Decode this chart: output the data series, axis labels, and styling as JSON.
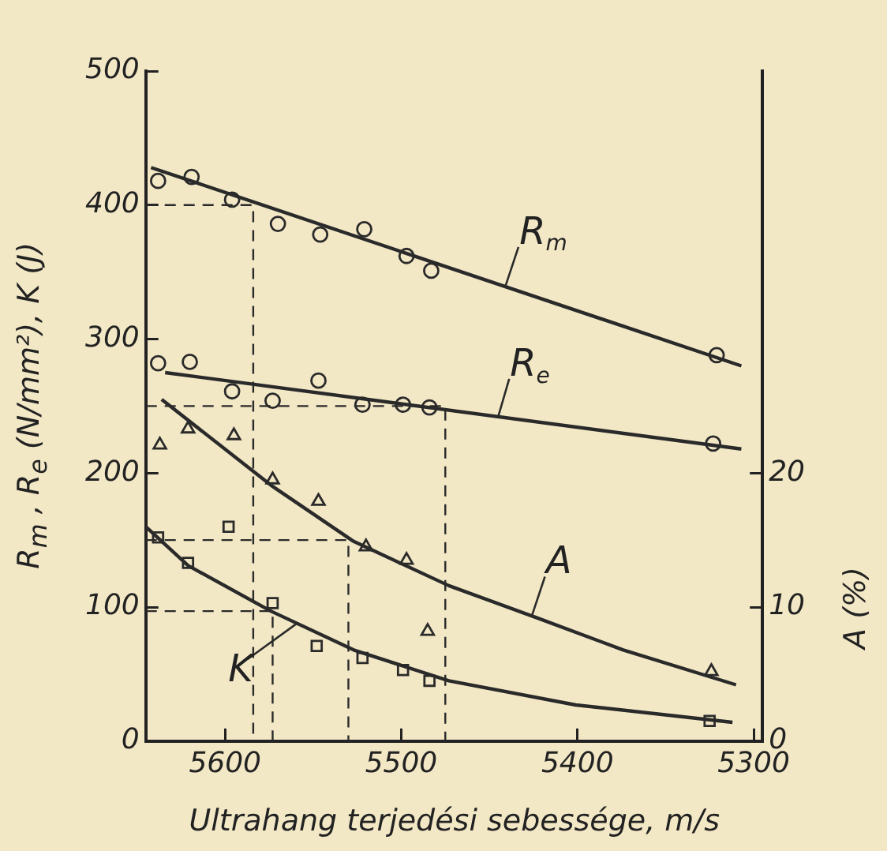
{
  "chart_data": {
    "type": "scatter",
    "xlabel": "Ultrahang terjedési sebessége, m/s",
    "ylabel": "R$_{m}$ , R$_{e}$ (N/mm²), K (J)",
    "y2label": "A (%)",
    "xlim": [
      5645,
      5295
    ],
    "xticks": [
      5600,
      5500,
      5400,
      5300
    ],
    "ylim": [
      0,
      500
    ],
    "yticks": [
      0,
      100,
      200,
      300,
      400,
      500
    ],
    "y2lim": [
      0,
      50
    ],
    "y2ticks": [
      0,
      10,
      20
    ],
    "grid": false,
    "legend": false,
    "series": [
      {
        "marker": "circle",
        "color": "#2a2a2a",
        "x": [
          5638,
          5619,
          5596,
          5570,
          5546,
          5521,
          5497,
          5483,
          5321
        ],
        "values": [
          418,
          421,
          404,
          386,
          378,
          382,
          362,
          351,
          288
        ]
      },
      {
        "type": "line",
        "marker": "none",
        "line_style": "solid",
        "color": "#2a2a2a",
        "x": [
          5642,
          5307
        ],
        "values": [
          428,
          280
        ]
      },
      {
        "marker": "circle",
        "color": "#2a2a2a",
        "x": [
          5638,
          5620,
          5596,
          5573,
          5547,
          5522,
          5499,
          5484,
          5323
        ],
        "values": [
          282,
          283,
          261,
          254,
          269,
          251,
          251,
          249,
          222
        ]
      },
      {
        "type": "line",
        "marker": "none",
        "line_style": "solid",
        "color": "#2a2a2a",
        "x": [
          5634,
          5307
        ],
        "values": [
          275,
          218
        ]
      },
      {
        "marker": "triangle",
        "color": "#2a2a2a",
        "axis": "y2",
        "x": [
          5637,
          5621,
          5595,
          5573,
          5547,
          5520,
          5497,
          5485,
          5324
        ],
        "values": [
          22.1,
          23.3,
          22.8,
          19.5,
          17.9,
          14.5,
          13.5,
          8.2,
          5.2
        ]
      },
      {
        "type": "line",
        "marker": "none",
        "line_style": "solid",
        "color": "#2a2a2a",
        "axis": "y2",
        "x": [
          5636,
          5574,
          5527,
          5473,
          5423,
          5374,
          5310
        ],
        "values": [
          25.5,
          19.1,
          14.9,
          11.6,
          9.2,
          6.8,
          4.2
        ]
      },
      {
        "marker": "square",
        "color": "#2a2a2a",
        "x": [
          5638,
          5621,
          5598,
          5573,
          5548,
          5522,
          5499,
          5484,
          5325
        ],
        "values": [
          152,
          133,
          160,
          103,
          71,
          62,
          53,
          45,
          15
        ]
      },
      {
        "type": "line",
        "marker": "none",
        "line_style": "solid",
        "color": "#2a2a2a",
        "x": [
          5645,
          5621,
          5574,
          5527,
          5473,
          5401,
          5312
        ],
        "values": [
          160,
          131,
          97,
          68,
          45,
          27,
          14
        ]
      },
      {
        "type": "line",
        "marker": "none",
        "line_style": "dashed",
        "color": "#2a2a2a",
        "x": [
          5645,
          5584,
          5584
        ],
        "values": [
          400,
          400,
          0
        ]
      },
      {
        "type": "line",
        "marker": "none",
        "line_style": "dashed",
        "color": "#2a2a2a",
        "x": [
          5645,
          5475,
          5475
        ],
        "values": [
          250,
          250,
          0
        ]
      },
      {
        "type": "line",
        "marker": "none",
        "line_style": "dashed",
        "color": "#2a2a2a",
        "x": [
          5645,
          5530,
          5530
        ],
        "values": [
          150,
          150,
          0
        ]
      },
      {
        "type": "line",
        "marker": "none",
        "line_style": "dashed",
        "color": "#2a2a2a",
        "x": [
          5645,
          5573,
          5573
        ],
        "values": [
          97,
          97,
          0
        ]
      }
    ],
    "annotations": [
      {
        "text": "R$_{m}$",
        "x": 5441,
        "y": 339
      },
      {
        "text": "R$_{e}$",
        "x": 5445,
        "y": 242
      },
      {
        "text": "A",
        "x": 5426,
        "y": 93
      },
      {
        "text": "K",
        "x": 5559,
        "y": 88
      }
    ]
  }
}
